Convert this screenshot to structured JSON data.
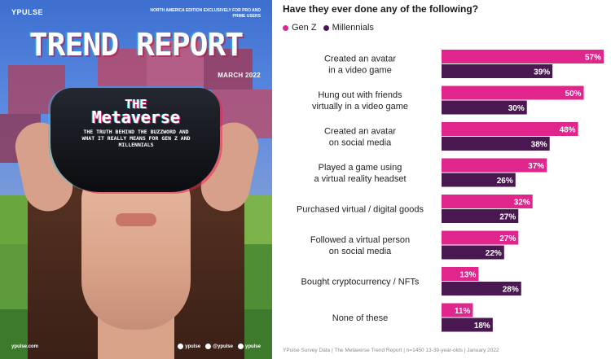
{
  "cover": {
    "brand": "YPULSE",
    "edition": "NORTH AMERICA EDITION EXCLUSIVELY FOR PRO AND PRIME USERS",
    "title": "TREND REPORT",
    "date": "MARCH 2022",
    "headline_1": "THE",
    "headline_2": "Metaverse",
    "subhead": "THE TRUTH BEHIND THE BUZZWORD AND WHAT IT REALLY MEANS FOR GEN Z AND MILLENNIALS",
    "website": "ypulse.com",
    "social": [
      "ypulse",
      "@ypulse",
      "ypulse"
    ]
  },
  "chart_data": {
    "type": "bar",
    "orientation": "horizontal",
    "title": "Have they ever done any of the following?",
    "categories": [
      [
        "Created an avatar",
        "in a video game"
      ],
      [
        "Hung out with friends",
        "virtually in a video game"
      ],
      [
        "Created an avatar",
        "on social media"
      ],
      [
        "Played a game using",
        "a virtual reality headset"
      ],
      [
        "Purchased virtual / digital goods"
      ],
      [
        "Followed a virtual person",
        "on social media"
      ],
      [
        "Bought cryptocurrency / NFTs"
      ],
      [
        "None of these"
      ]
    ],
    "series": [
      {
        "name": "Gen Z",
        "color": "#e0258c",
        "values": [
          57,
          50,
          48,
          37,
          32,
          27,
          13,
          11
        ]
      },
      {
        "name": "Millennials",
        "color": "#4a1850",
        "values": [
          39,
          30,
          38,
          26,
          27,
          22,
          28,
          18
        ]
      }
    ],
    "value_suffix": "%",
    "xlim": [
      0,
      57
    ],
    "grid": false,
    "legend_position": "top-left"
  },
  "source": "YPulse Survey Data | The Metaverse Trend Report | n=1450 13-39-year-olds | January 2022"
}
